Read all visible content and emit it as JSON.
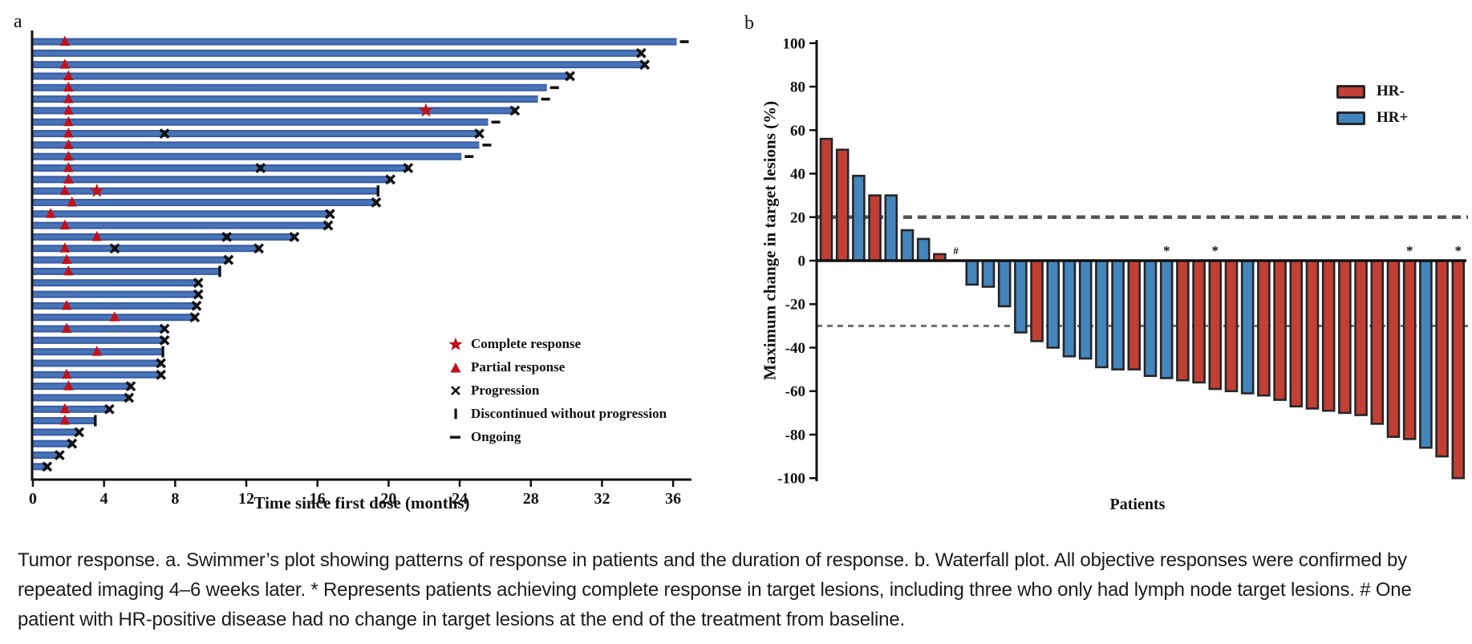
{
  "figure": {
    "panel_a_label": "a",
    "panel_b_label": "b"
  },
  "caption": "Tumor response. a. Swimmer’s plot showing patterns of response in patients and the duration of response. b. Waterfall plot. All objective responses were confirmed by repeated imaging 4–6 weeks later. * Represents patients achieving complete response in target lesions, including three who only had lymph node target lesions. # One patient with HR-positive disease had no change in target lesions at the end of the treatment from baseline.",
  "chart_data": [
    {
      "type": "bar",
      "subtype": "swimmer",
      "orientation": "horizontal",
      "xlabel": "Time since first dose (months)",
      "xlim": [
        0,
        37.5
      ],
      "xticks": [
        0,
        4,
        8,
        12,
        16,
        20,
        24,
        28,
        32,
        36
      ],
      "grid": false,
      "bar_color": "#3a62a8",
      "marker_red": "#c0121b",
      "marker_black": "#111111",
      "legend_position": "lower-right-inside",
      "legend": [
        {
          "marker": "star",
          "color": "#c0121b",
          "label": "Complete response"
        },
        {
          "marker": "triangle",
          "color": "#c0121b",
          "label": "Partial response"
        },
        {
          "marker": "x",
          "color": "#111111",
          "label": "Progression"
        },
        {
          "marker": "vbar",
          "color": "#111111",
          "label": "Discontinued without progression"
        },
        {
          "marker": "dash",
          "color": "#111111",
          "label": "Ongoing"
        }
      ],
      "patients": [
        {
          "duration": 36.2,
          "end": "ongoing",
          "markers": [
            {
              "type": "pr",
              "t": 1.8
            }
          ]
        },
        {
          "duration": 34.2,
          "end": "progression",
          "markers": []
        },
        {
          "duration": 34.4,
          "end": "progression",
          "markers": [
            {
              "type": "pr",
              "t": 1.8
            }
          ]
        },
        {
          "duration": 30.2,
          "end": "progression",
          "markers": [
            {
              "type": "pr",
              "t": 2.0
            }
          ]
        },
        {
          "duration": 28.9,
          "end": "ongoing",
          "markers": [
            {
              "type": "pr",
              "t": 2.0
            }
          ]
        },
        {
          "duration": 28.4,
          "end": "ongoing",
          "markers": [
            {
              "type": "pr",
              "t": 2.0
            }
          ]
        },
        {
          "duration": 27.1,
          "end": "progression",
          "markers": [
            {
              "type": "pr",
              "t": 2.0
            },
            {
              "type": "cr",
              "t": 22.1
            }
          ]
        },
        {
          "duration": 25.6,
          "end": "ongoing",
          "markers": [
            {
              "type": "pr",
              "t": 2.0
            }
          ]
        },
        {
          "duration": 25.1,
          "end": "progression",
          "markers": [
            {
              "type": "pr",
              "t": 2.0
            },
            {
              "type": "prog",
              "t": 7.4
            }
          ]
        },
        {
          "duration": 25.1,
          "end": "ongoing",
          "markers": [
            {
              "type": "pr",
              "t": 2.0
            }
          ]
        },
        {
          "duration": 24.1,
          "end": "ongoing",
          "markers": [
            {
              "type": "pr",
              "t": 2.0
            }
          ]
        },
        {
          "duration": 21.1,
          "end": "progression",
          "markers": [
            {
              "type": "pr",
              "t": 2.0
            },
            {
              "type": "prog",
              "t": 12.8
            }
          ]
        },
        {
          "duration": 20.1,
          "end": "progression",
          "markers": [
            {
              "type": "pr",
              "t": 2.0
            }
          ]
        },
        {
          "duration": 19.4,
          "end": "discontinued",
          "markers": [
            {
              "type": "pr",
              "t": 1.8
            },
            {
              "type": "cr",
              "t": 3.6
            }
          ]
        },
        {
          "duration": 19.3,
          "end": "progression",
          "markers": [
            {
              "type": "pr",
              "t": 2.2
            }
          ]
        },
        {
          "duration": 16.7,
          "end": "progression",
          "markers": [
            {
              "type": "pr",
              "t": 1.0
            }
          ]
        },
        {
          "duration": 16.6,
          "end": "progression",
          "markers": [
            {
              "type": "pr",
              "t": 1.8
            }
          ]
        },
        {
          "duration": 14.7,
          "end": "progression",
          "markers": [
            {
              "type": "pr",
              "t": 3.6
            },
            {
              "type": "prog",
              "t": 10.9
            }
          ]
        },
        {
          "duration": 12.7,
          "end": "progression",
          "markers": [
            {
              "type": "pr",
              "t": 1.8
            },
            {
              "type": "prog",
              "t": 4.6
            }
          ]
        },
        {
          "duration": 11.0,
          "end": "progression",
          "markers": [
            {
              "type": "pr",
              "t": 1.9
            }
          ]
        },
        {
          "duration": 10.5,
          "end": "discontinued",
          "markers": [
            {
              "type": "pr",
              "t": 2.0
            }
          ]
        },
        {
          "duration": 9.3,
          "end": "progression",
          "markers": []
        },
        {
          "duration": 9.3,
          "end": "progression",
          "markers": []
        },
        {
          "duration": 9.2,
          "end": "progression",
          "markers": [
            {
              "type": "pr",
              "t": 1.9
            }
          ]
        },
        {
          "duration": 9.1,
          "end": "progression",
          "markers": [
            {
              "type": "pr",
              "t": 4.6
            }
          ]
        },
        {
          "duration": 7.4,
          "end": "progression",
          "markers": [
            {
              "type": "pr",
              "t": 1.9
            }
          ]
        },
        {
          "duration": 7.4,
          "end": "progression",
          "markers": []
        },
        {
          "duration": 7.3,
          "end": "discontinued",
          "markers": [
            {
              "type": "pr",
              "t": 3.6
            }
          ]
        },
        {
          "duration": 7.2,
          "end": "progression",
          "markers": []
        },
        {
          "duration": 7.2,
          "end": "progression",
          "markers": [
            {
              "type": "pr",
              "t": 1.9
            }
          ]
        },
        {
          "duration": 5.5,
          "end": "progression",
          "markers": [
            {
              "type": "pr",
              "t": 2.0
            }
          ]
        },
        {
          "duration": 5.4,
          "end": "progression",
          "markers": []
        },
        {
          "duration": 4.3,
          "end": "progression",
          "markers": [
            {
              "type": "pr",
              "t": 1.8
            }
          ]
        },
        {
          "duration": 3.5,
          "end": "discontinued",
          "markers": [
            {
              "type": "pr",
              "t": 1.8
            }
          ]
        },
        {
          "duration": 2.6,
          "end": "progression",
          "markers": []
        },
        {
          "duration": 2.2,
          "end": "progression",
          "markers": []
        },
        {
          "duration": 1.5,
          "end": "progression",
          "markers": []
        },
        {
          "duration": 0.8,
          "end": "progression",
          "markers": []
        }
      ]
    },
    {
      "type": "bar",
      "subtype": "waterfall",
      "ylabel": "Maximum change in target lesions (%)",
      "xlabel": "Patients",
      "ylim": [
        -100,
        100
      ],
      "yticks": [
        100,
        80,
        60,
        40,
        20,
        0,
        -20,
        -40,
        -60,
        -80,
        -100
      ],
      "grid": false,
      "reference_lines": [
        {
          "y": 20,
          "style": "dashed",
          "color": "#565656",
          "width": 4.5,
          "dash": "11 7"
        },
        {
          "y": -30,
          "style": "dashed",
          "color": "#6f6f6f",
          "width": 3,
          "dash": "7 6"
        }
      ],
      "legend_position": "upper-right-inside",
      "legend": [
        {
          "label": "HR-",
          "color": "#c23f33"
        },
        {
          "label": "HR+",
          "color": "#4485bb"
        }
      ],
      "bar_outline": "#26262a",
      "values": [
        {
          "value": 56,
          "group": "HR-"
        },
        {
          "value": 51,
          "group": "HR-"
        },
        {
          "value": 39,
          "group": "HR+"
        },
        {
          "value": 30,
          "group": "HR-"
        },
        {
          "value": 30,
          "group": "HR+"
        },
        {
          "value": 14,
          "group": "HR+"
        },
        {
          "value": 10,
          "group": "HR+"
        },
        {
          "value": 3,
          "group": "HR-"
        },
        {
          "value": 0,
          "group": "HR+",
          "annotation": "#"
        },
        {
          "value": -11,
          "group": "HR+"
        },
        {
          "value": -12,
          "group": "HR+"
        },
        {
          "value": -21,
          "group": "HR+"
        },
        {
          "value": -33,
          "group": "HR+"
        },
        {
          "value": -37,
          "group": "HR-"
        },
        {
          "value": -40,
          "group": "HR+"
        },
        {
          "value": -44,
          "group": "HR+"
        },
        {
          "value": -45,
          "group": "HR+"
        },
        {
          "value": -49,
          "group": "HR+"
        },
        {
          "value": -50,
          "group": "HR+"
        },
        {
          "value": -50,
          "group": "HR-"
        },
        {
          "value": -53,
          "group": "HR+"
        },
        {
          "value": -54,
          "group": "HR+",
          "annotation": "*"
        },
        {
          "value": -55,
          "group": "HR-"
        },
        {
          "value": -56,
          "group": "HR-"
        },
        {
          "value": -59,
          "group": "HR-",
          "annotation": "*"
        },
        {
          "value": -60,
          "group": "HR-"
        },
        {
          "value": -61,
          "group": "HR+"
        },
        {
          "value": -62,
          "group": "HR-"
        },
        {
          "value": -64,
          "group": "HR-"
        },
        {
          "value": -67,
          "group": "HR-"
        },
        {
          "value": -68,
          "group": "HR-"
        },
        {
          "value": -69,
          "group": "HR-"
        },
        {
          "value": -70,
          "group": "HR-"
        },
        {
          "value": -71,
          "group": "HR-"
        },
        {
          "value": -75,
          "group": "HR-"
        },
        {
          "value": -81,
          "group": "HR-"
        },
        {
          "value": -82,
          "group": "HR-",
          "annotation": "*"
        },
        {
          "value": -86,
          "group": "HR+"
        },
        {
          "value": -90,
          "group": "HR-"
        },
        {
          "value": -100,
          "group": "HR-",
          "annotation": "*"
        }
      ]
    }
  ]
}
